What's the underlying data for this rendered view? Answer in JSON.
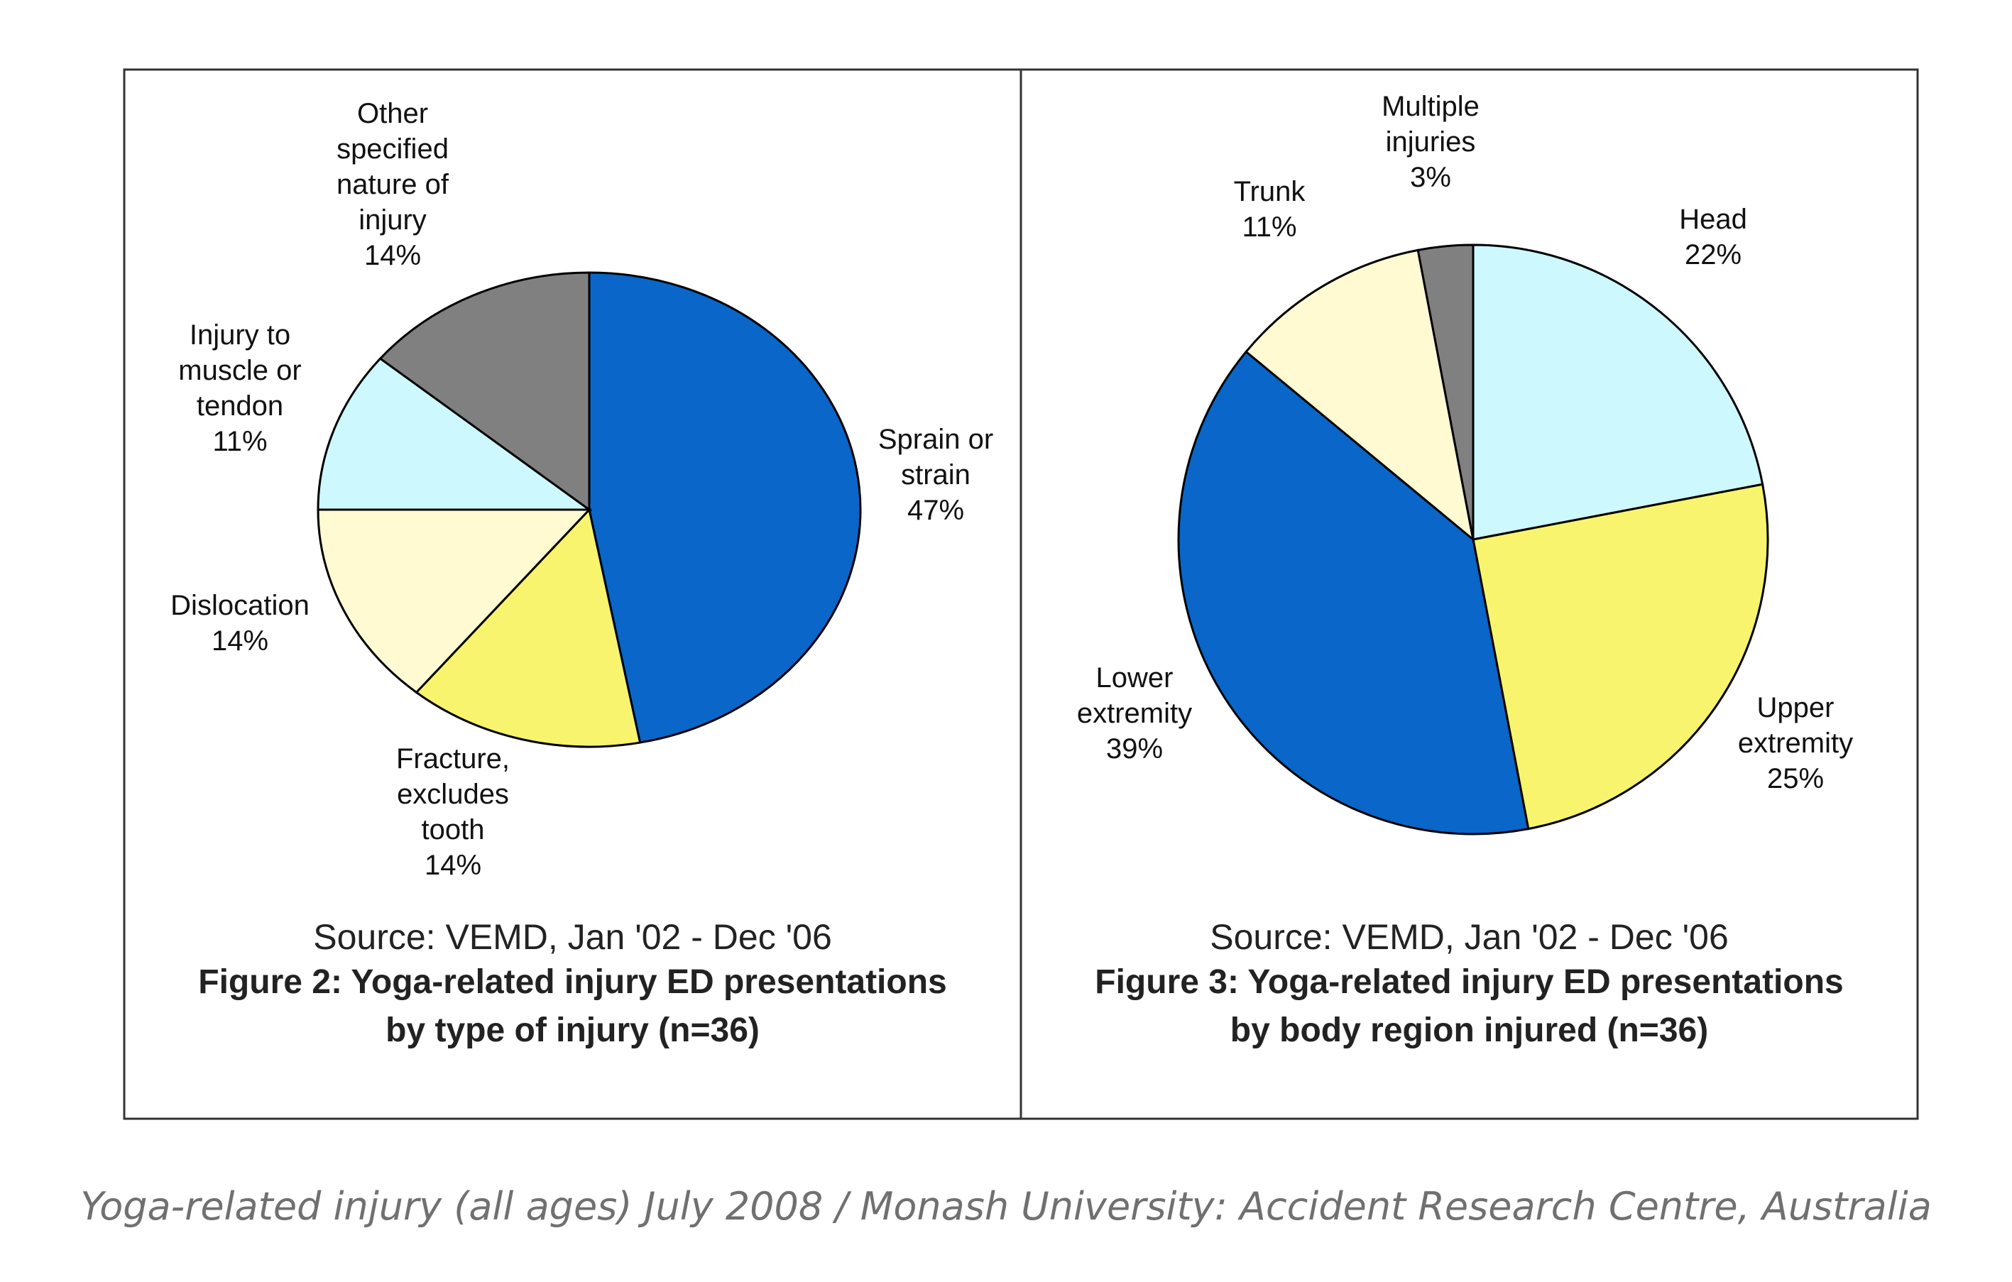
{
  "caption": "Yoga-related injury (all ages) July 2008 / Monash University: Accident Research Centre, Australia",
  "chart_data": [
    {
      "type": "pie",
      "title": "Figure 2: Yoga-related injury ED presentations by type of injury (n=36)",
      "title_lines": [
        "Figure 2: Yoga-related injury ED presentations",
        "by type of injury (n=36)"
      ],
      "source": "Source: VEMD, Jan '02 - Dec '06",
      "slices": [
        {
          "label_lines": [
            "Sprain or",
            "strain"
          ],
          "value": 47,
          "pct_label": "47%",
          "color": "#0a66c8"
        },
        {
          "label_lines": [
            "Fracture,",
            "excludes",
            "tooth"
          ],
          "value": 14,
          "pct_label": "14%",
          "color": "#f8f46e"
        },
        {
          "label_lines": [
            "Dislocation"
          ],
          "value": 14,
          "pct_label": "14%",
          "color": "#fffad2"
        },
        {
          "label_lines": [
            "Injury to",
            "muscle or",
            "tendon"
          ],
          "value": 11,
          "pct_label": "11%",
          "color": "#ccf8fe"
        },
        {
          "label_lines": [
            "Other",
            "specified",
            "nature of",
            "injury"
          ],
          "value": 14,
          "pct_label": "14%",
          "color": "#808080"
        }
      ]
    },
    {
      "type": "pie",
      "title": "Figure 3: Yoga-related injury ED presentations by body region injured (n=36)",
      "title_lines": [
        "Figure 3: Yoga-related injury ED presentations",
        "by body region injured (n=36)"
      ],
      "source": "Source: VEMD, Jan '02 - Dec '06",
      "slices": [
        {
          "label_lines": [
            "Head"
          ],
          "value": 22,
          "pct_label": "22%",
          "color": "#ccf8fe"
        },
        {
          "label_lines": [
            "Upper",
            "extremity"
          ],
          "value": 25,
          "pct_label": "25%",
          "color": "#f8f46e"
        },
        {
          "label_lines": [
            "Lower",
            "extremity"
          ],
          "value": 39,
          "pct_label": "39%",
          "color": "#0a66c8"
        },
        {
          "label_lines": [
            "Trunk"
          ],
          "value": 11,
          "pct_label": "11%",
          "color": "#fffad2"
        },
        {
          "label_lines": [
            "Multiple",
            "injuries"
          ],
          "value": 3,
          "pct_label": "3%",
          "color": "#808080"
        }
      ]
    }
  ]
}
